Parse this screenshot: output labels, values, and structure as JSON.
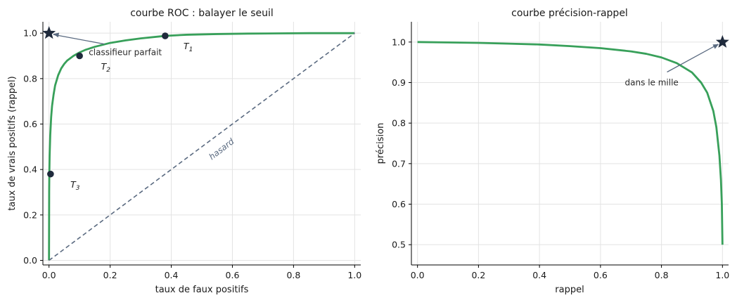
{
  "chart_data": [
    {
      "type": "line",
      "title": "courbe ROC : balayer le seuil",
      "xlabel": "taux de faux positifs",
      "ylabel": "taux de vrais positifs (rappel)",
      "xlim": [
        -0.02,
        1.02
      ],
      "ylim": [
        -0.02,
        1.05
      ],
      "xticks": [
        0.0,
        0.2,
        0.4,
        0.6,
        0.8,
        1.0
      ],
      "yticks": [
        0.0,
        0.2,
        0.4,
        0.6,
        0.8,
        1.0
      ],
      "xtick_labels": [
        "0.0",
        "0.2",
        "0.4",
        "0.6",
        "0.8",
        "1.0"
      ],
      "ytick_labels": [
        "0.0",
        "0.2",
        "0.4",
        "0.6",
        "0.8",
        "1.0"
      ],
      "grid": true,
      "series": [
        {
          "kind": "curve",
          "color": "#38a05a",
          "x": [
            0.0,
            0.0005,
            0.001,
            0.002,
            0.004,
            0.007,
            0.01,
            0.015,
            0.02,
            0.03,
            0.04,
            0.05,
            0.06,
            0.08,
            0.1,
            0.12,
            0.15,
            0.2,
            0.25,
            0.3,
            0.38,
            0.45,
            0.55,
            0.65,
            0.75,
            0.85,
            0.95,
            1.0
          ],
          "y": [
            0.0,
            0.3,
            0.38,
            0.46,
            0.55,
            0.63,
            0.68,
            0.73,
            0.77,
            0.815,
            0.845,
            0.865,
            0.88,
            0.9,
            0.915,
            0.927,
            0.94,
            0.957,
            0.968,
            0.977,
            0.988,
            0.993,
            0.996,
            0.998,
            0.999,
            1.0,
            1.0,
            1.0
          ]
        },
        {
          "kind": "diagonal",
          "label": "hasard",
          "color": "#5a6a80",
          "x": [
            0.0,
            1.0
          ],
          "y": [
            0.0,
            1.0
          ]
        }
      ],
      "points": [
        {
          "label": "T_1",
          "x": 0.38,
          "y": 0.988,
          "label_x": 0.44,
          "label_y": 0.93
        },
        {
          "label": "T_2",
          "x": 0.1,
          "y": 0.9,
          "label_x": 0.17,
          "label_y": 0.84
        },
        {
          "label": "T_3",
          "x": 0.005,
          "y": 0.38,
          "label_x": 0.07,
          "label_y": 0.32
        }
      ],
      "star": {
        "x": 0.0,
        "y": 1.0,
        "color": "#1f2a3c"
      },
      "annotation": {
        "text": "classifieur parfait",
        "x": 0.13,
        "y": 0.915,
        "arrow_to_x": 0.0,
        "arrow_to_y": 1.0
      },
      "diagonal_label": {
        "text": "hasard",
        "x": 0.57,
        "y": 0.48
      }
    },
    {
      "type": "line",
      "title": "courbe précision-rappel",
      "xlabel": "rappel",
      "ylabel": "précision",
      "xlim": [
        -0.02,
        1.02
      ],
      "ylim": [
        0.45,
        1.05
      ],
      "xticks": [
        0.0,
        0.2,
        0.4,
        0.6,
        0.8,
        1.0
      ],
      "yticks": [
        0.5,
        0.6,
        0.7,
        0.8,
        0.9,
        1.0
      ],
      "xtick_labels": [
        "0.0",
        "0.2",
        "0.4",
        "0.6",
        "0.8",
        "1.0"
      ],
      "ytick_labels": [
        "0.5",
        "0.6",
        "0.7",
        "0.8",
        "0.9",
        "1.0"
      ],
      "grid": true,
      "series": [
        {
          "kind": "curve",
          "color": "#38a05a",
          "x": [
            0.0,
            0.1,
            0.2,
            0.3,
            0.4,
            0.5,
            0.6,
            0.7,
            0.75,
            0.8,
            0.85,
            0.9,
            0.93,
            0.95,
            0.97,
            0.98,
            0.99,
            0.995,
            0.998,
            1.0
          ],
          "y": [
            1.0,
            0.999,
            0.998,
            0.996,
            0.994,
            0.99,
            0.985,
            0.977,
            0.971,
            0.962,
            0.948,
            0.925,
            0.9,
            0.875,
            0.83,
            0.79,
            0.72,
            0.66,
            0.6,
            0.5
          ]
        }
      ],
      "star": {
        "x": 1.0,
        "y": 1.0,
        "color": "#1f2a3c"
      },
      "annotation": {
        "text": "dans le mille",
        "x": 0.68,
        "y": 0.9,
        "arrow_to_x": 1.0,
        "arrow_to_y": 1.0
      }
    }
  ]
}
